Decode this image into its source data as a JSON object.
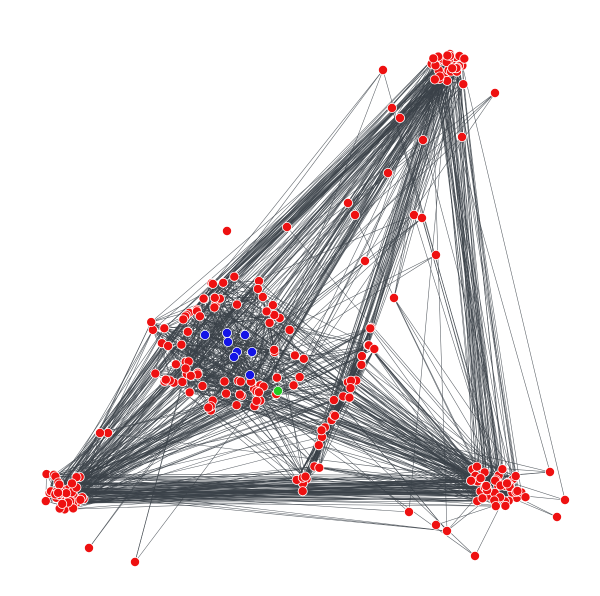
{
  "network_graph": {
    "colors": {
      "background": "#ffffff",
      "edge": "#3b4249",
      "node_default": "#ee1111",
      "node_highlight_a": "#1414e6",
      "node_highlight_b": "#22cc22"
    },
    "clusters": [
      {
        "id": "top",
        "color_key": "node_default"
      },
      {
        "id": "center",
        "color_key": "node_default"
      },
      {
        "id": "left-bottom",
        "color_key": "node_default"
      },
      {
        "id": "right-bottom",
        "color_key": "node_default"
      },
      {
        "id": "middle-branch",
        "color_key": "node_default"
      },
      {
        "id": "center-core",
        "color_key": "node_highlight_a"
      },
      {
        "id": "center-single",
        "color_key": "node_highlight_b"
      }
    ]
  }
}
